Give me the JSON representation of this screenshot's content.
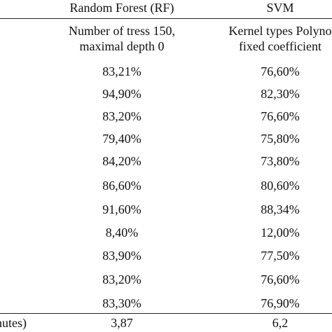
{
  "table": {
    "columns": [
      "Random Forest (RF)",
      "SVM"
    ],
    "params": {
      "rf_line1": "Number of tress 150,",
      "rf_line2": "maximal depth 0",
      "svm_line1": "Kernel types Polyno",
      "svm_line2": "fixed coefficient"
    },
    "rows": [
      {
        "rf": "83,21%",
        "svm": "76,60%"
      },
      {
        "rf": "94,90%",
        "svm": "82,30%"
      },
      {
        "rf": "83,20%",
        "svm": "76,60%"
      },
      {
        "rf": "79,40%",
        "svm": "75,80%"
      },
      {
        "rf": "84,20%",
        "svm": "73,80%"
      },
      {
        "rf": "86,60%",
        "svm": "80,60%"
      },
      {
        "rf": "91,60%",
        "svm": "88,34%"
      },
      {
        "rf": "8,40%",
        "svm": "12,00%"
      },
      {
        "rf": "83,90%",
        "svm": "77,50%"
      },
      {
        "rf": "83,20%",
        "svm": "76,60%"
      },
      {
        "rf": "83,30%",
        "svm": "76,90%"
      }
    ],
    "time_row": {
      "label": "nutes)",
      "rf": "3,87",
      "svm": "6,2"
    }
  }
}
